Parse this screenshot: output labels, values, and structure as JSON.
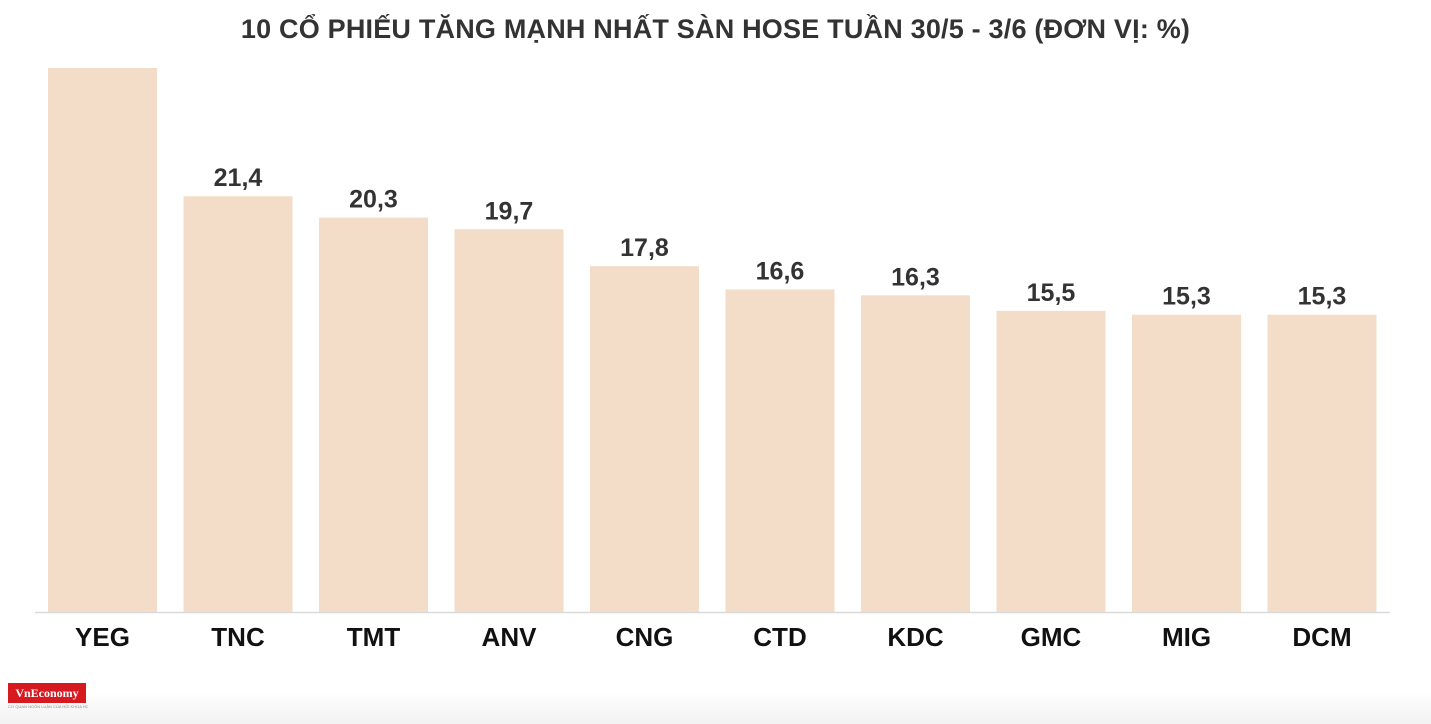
{
  "chart_data": {
    "type": "bar",
    "title": "10 CỔ PHIẾU TĂNG MẠNH NHẤT SÀN HOSE TUẦN 30/5 - 3/6 (ĐƠN VỊ: %)",
    "categories": [
      "YEG",
      "TNC",
      "TMT",
      "ANV",
      "CNG",
      "CTD",
      "KDC",
      "GMC",
      "MIG",
      "DCM"
    ],
    "values": [
      28.0,
      21.4,
      20.3,
      19.7,
      17.8,
      16.6,
      16.3,
      15.5,
      15.3,
      15.3
    ],
    "value_labels": [
      "",
      "21,4",
      "20,3",
      "19,7",
      "17,8",
      "16,6",
      "16,3",
      "15,5",
      "15,3",
      "15,3"
    ],
    "ylim": [
      0,
      28
    ],
    "grid": false,
    "bar_color": "#f3dcc8",
    "axis_color": "#d9d9d9"
  },
  "branding": {
    "logo_text": "VnEconomy",
    "tagline": "CƠ QUAN NGÔN LUẬN CỦA HỘI KHOA HỌC KINH TẾ VIỆT NAM",
    "logo_color": "#d71920"
  }
}
